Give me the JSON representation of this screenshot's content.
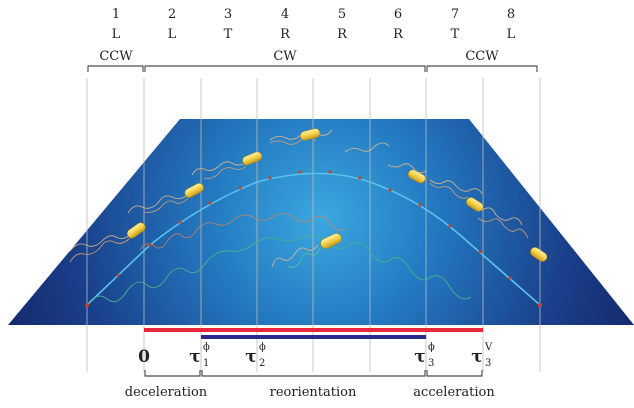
{
  "steps": [
    {
      "num": "1",
      "code": "L"
    },
    {
      "num": "2",
      "code": "L"
    },
    {
      "num": "3",
      "code": "T"
    },
    {
      "num": "4",
      "code": "R"
    },
    {
      "num": "5",
      "code": "R"
    },
    {
      "num": "6",
      "code": "R"
    },
    {
      "num": "7",
      "code": "T"
    },
    {
      "num": "8",
      "code": "L"
    }
  ],
  "rotation_groups": [
    {
      "label": "CCW"
    },
    {
      "label": "CW"
    },
    {
      "label": "CCW"
    }
  ],
  "time_marks": [
    {
      "base": "0",
      "sup": "",
      "sub": ""
    },
    {
      "base": "τ",
      "sup": "ϕ",
      "sub": "1"
    },
    {
      "base": "τ",
      "sup": "ϕ",
      "sub": "2"
    },
    {
      "base": "τ",
      "sup": "ϕ",
      "sub": "3"
    },
    {
      "base": "τ",
      "sup": "V",
      "sub": "3"
    }
  ],
  "phases": [
    {
      "label": "deceleration"
    },
    {
      "label": "reorientation"
    },
    {
      "label": "acceleration"
    }
  ],
  "colors": {
    "plane_center": "#3aa8e0",
    "plane_edge": "#152a6e",
    "velocity_bar": "#e8283a",
    "orientation_bar": "#2a2a8c",
    "body": "#f2d04a",
    "path": "#58c4e8"
  }
}
